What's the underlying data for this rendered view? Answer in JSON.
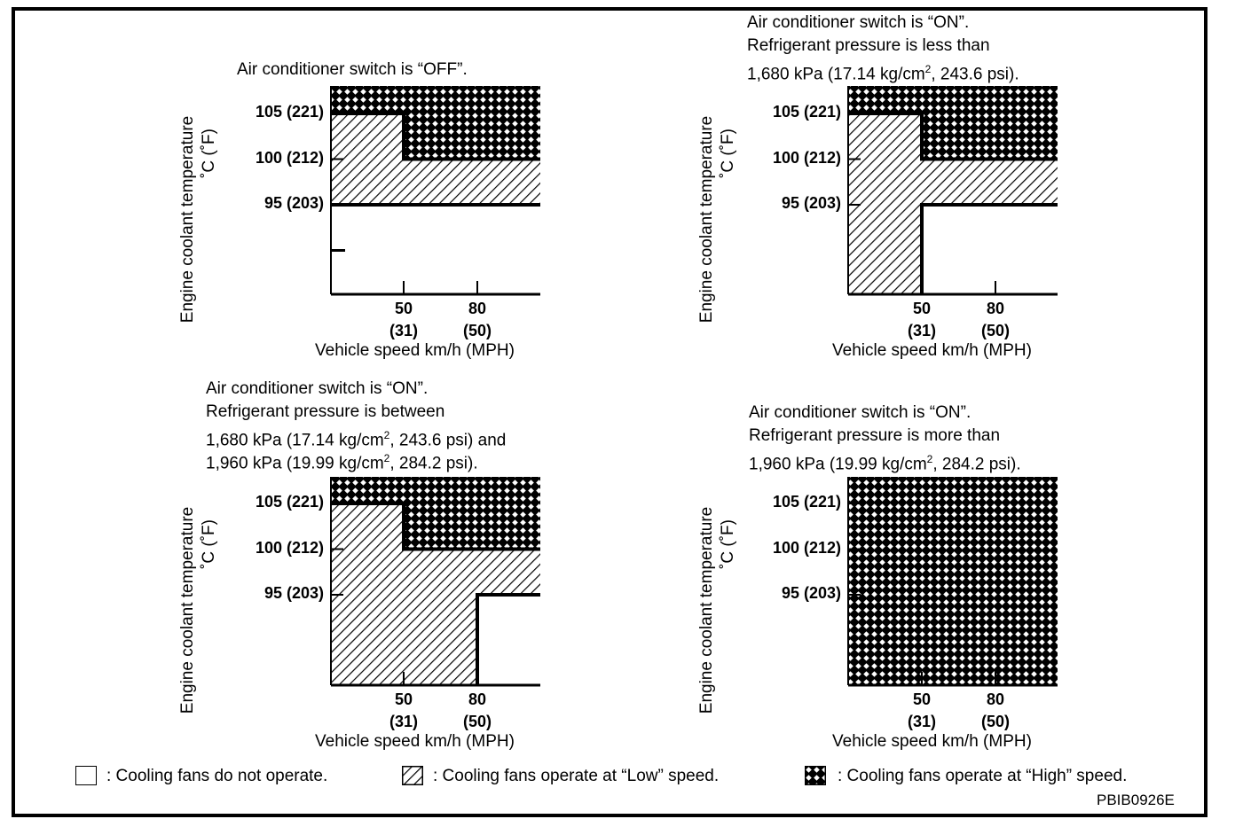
{
  "colors": {
    "ink": "#000000",
    "paper": "#ffffff"
  },
  "chart_data": [
    {
      "type": "area",
      "title": "Air conditioner switch is “OFF”.",
      "title_lines": [
        "Air conditioner switch is “OFF”."
      ],
      "xlabel": "Vehicle speed km/h (MPH)",
      "ylabel": [
        "Engine coolant temperature",
        "˚C (˚F)"
      ],
      "x_ticks": [
        {
          "value": 50,
          "label": "50",
          "sub": "(31)"
        },
        {
          "value": 80,
          "label": "80",
          "sub": "(50)"
        }
      ],
      "y_ticks": [
        {
          "value": 105,
          "label": "105 (221)"
        },
        {
          "value": 100,
          "label": "100 (212)"
        },
        {
          "value": 95,
          "label": "95 (203)"
        }
      ],
      "regions": [
        {
          "mode": "high",
          "polygon": [
            [
              0,
              110
            ],
            [
              110,
              110
            ],
            [
              110,
              100
            ],
            [
              50,
              100
            ],
            [
              50,
              105
            ],
            [
              0,
              105
            ]
          ]
        },
        {
          "mode": "low",
          "polygon": [
            [
              0,
              105
            ],
            [
              50,
              105
            ],
            [
              50,
              100
            ],
            [
              110,
              100
            ],
            [
              110,
              95
            ],
            [
              0,
              95
            ]
          ]
        }
      ],
      "boundary": [
        [
          [
            0,
            105
          ],
          [
            50,
            105
          ],
          [
            50,
            100
          ],
          [
            110,
            100
          ]
        ],
        [
          [
            0,
            95
          ],
          [
            110,
            95
          ]
        ]
      ],
      "extra_y_tick": 90
    },
    {
      "type": "area",
      "title": "Air conditioner switch is “ON”. Refrigerant pressure is less than 1,680 kPa (17.14 kg/cm2, 243.6 psi).",
      "title_lines": [
        "Air conditioner switch is “ON”.",
        "Refrigerant pressure is less than",
        "1,680 kPa (17.14 kg/cm",
        "2",
        ", 243.6 psi)."
      ],
      "xlabel": "Vehicle speed km/h (MPH)",
      "ylabel": [
        "Engine coolant temperature",
        "˚C (˚F)"
      ],
      "x_ticks": [
        {
          "value": 50,
          "label": "50",
          "sub": "(31)"
        },
        {
          "value": 80,
          "label": "80",
          "sub": "(50)"
        }
      ],
      "y_ticks": [
        {
          "value": 105,
          "label": "105 (221)"
        },
        {
          "value": 100,
          "label": "100 (212)"
        },
        {
          "value": 95,
          "label": "95 (203)"
        }
      ],
      "regions": [
        {
          "mode": "high",
          "polygon": [
            [
              0,
              110
            ],
            [
              110,
              110
            ],
            [
              110,
              100
            ],
            [
              50,
              100
            ],
            [
              50,
              105
            ],
            [
              0,
              105
            ]
          ]
        },
        {
          "mode": "low",
          "polygon": [
            [
              0,
              105
            ],
            [
              50,
              105
            ],
            [
              50,
              100
            ],
            [
              110,
              100
            ],
            [
              110,
              95
            ],
            [
              50,
              95
            ],
            [
              50,
              81
            ],
            [
              0,
              81
            ]
          ]
        }
      ],
      "boundary": [
        [
          [
            0,
            105
          ],
          [
            50,
            105
          ],
          [
            50,
            100
          ],
          [
            110,
            100
          ]
        ],
        [
          [
            50,
            81
          ],
          [
            50,
            95
          ],
          [
            110,
            95
          ]
        ]
      ]
    },
    {
      "type": "area",
      "title": "Air conditioner switch is “ON”. Refrigerant pressure is between 1,680 kPa (17.14 kg/cm2, 243.6 psi) and 1,960 kPa (19.99 kg/cm2, 284.2 psi).",
      "title_lines": [
        "Air conditioner switch is “ON”.",
        "Refrigerant pressure is between",
        "1,680 kPa (17.14 kg/cm",
        "2",
        ", 243.6 psi) and",
        "1,960 kPa (19.99 kg/cm",
        "2",
        ", 284.2 psi)."
      ],
      "xlabel": "Vehicle speed km/h (MPH)",
      "ylabel": [
        "Engine coolant temperature",
        "˚C (˚F)"
      ],
      "x_ticks": [
        {
          "value": 50,
          "label": "50",
          "sub": "(31)"
        },
        {
          "value": 80,
          "label": "80",
          "sub": "(50)"
        }
      ],
      "y_ticks": [
        {
          "value": 105,
          "label": "105 (221)"
        },
        {
          "value": 100,
          "label": "100 (212)"
        },
        {
          "value": 95,
          "label": "95 (203)"
        }
      ],
      "regions": [
        {
          "mode": "high",
          "polygon": [
            [
              0,
              108
            ],
            [
              110,
              108
            ],
            [
              110,
              100
            ],
            [
              50,
              100
            ],
            [
              50,
              105
            ],
            [
              0,
              105
            ]
          ]
        },
        {
          "mode": "low",
          "polygon": [
            [
              0,
              105
            ],
            [
              50,
              105
            ],
            [
              50,
              100
            ],
            [
              110,
              100
            ],
            [
              110,
              95
            ],
            [
              80,
              95
            ],
            [
              80,
              81
            ],
            [
              0,
              81
            ]
          ]
        }
      ],
      "boundary": [
        [
          [
            0,
            105
          ],
          [
            50,
            105
          ],
          [
            50,
            100
          ],
          [
            110,
            100
          ]
        ],
        [
          [
            80,
            81
          ],
          [
            80,
            95
          ],
          [
            110,
            95
          ]
        ]
      ]
    },
    {
      "type": "area",
      "title": "Air conditioner switch is “ON”. Refrigerant pressure is more than 1,960 kPa (19.99 kg/cm2, 284.2 psi).",
      "title_lines": [
        "Air conditioner switch is “ON”.",
        "Refrigerant pressure is more than",
        "1,960 kPa (19.99 kg/cm",
        "2",
        ", 284.2 psi)."
      ],
      "xlabel": "Vehicle speed km/h (MPH)",
      "ylabel": [
        "Engine coolant temperature",
        "˚C (˚F)"
      ],
      "x_ticks": [
        {
          "value": 50,
          "label": "50",
          "sub": "(31)"
        },
        {
          "value": 80,
          "label": "80",
          "sub": "(50)"
        }
      ],
      "y_ticks": [
        {
          "value": 105,
          "label": "105 (221)"
        },
        {
          "value": 100,
          "label": "100 (212)"
        },
        {
          "value": 95,
          "label": "95 (203)"
        }
      ],
      "regions": [
        {
          "mode": "high",
          "polygon": [
            [
              0,
              108
            ],
            [
              110,
              108
            ],
            [
              110,
              81
            ],
            [
              0,
              81
            ]
          ]
        }
      ],
      "boundary": []
    }
  ],
  "legend": [
    {
      "mode": "off",
      "label": ": Cooling fans do not operate."
    },
    {
      "mode": "low",
      "label": ": Cooling fans operate at “Low” speed."
    },
    {
      "mode": "high",
      "label": ": Cooling fans operate at “High” speed."
    }
  ],
  "figure_code": "PBIB0926E"
}
